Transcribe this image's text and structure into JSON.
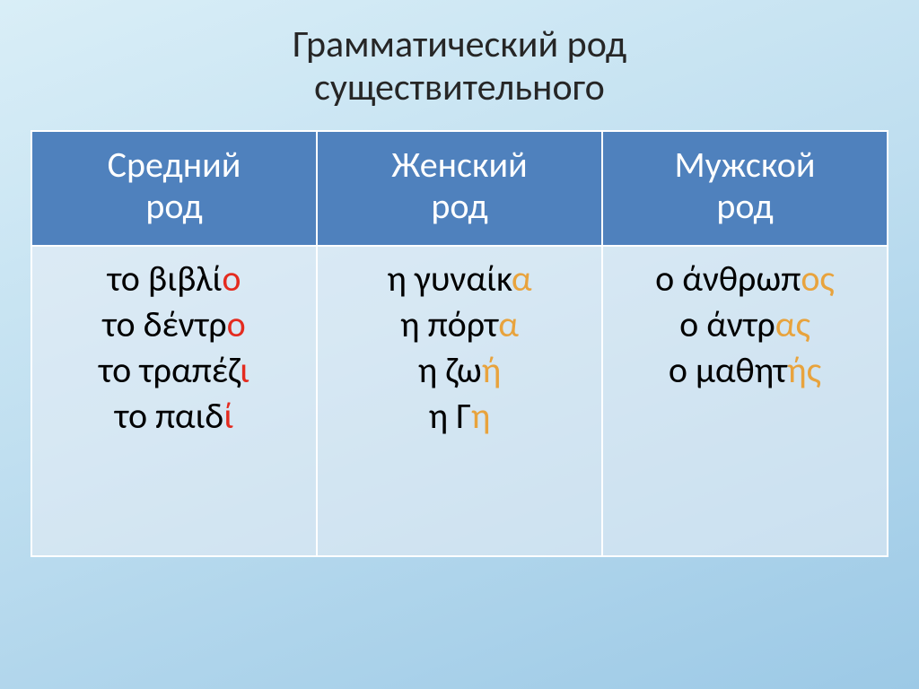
{
  "title_l1": "Грамматический род",
  "title_l2": "существительного",
  "colors": {
    "header_bg": "#4f81bd",
    "header_text": "#ffffff",
    "cell_border": "#ffffff",
    "highlight_red": "#e42b1f",
    "highlight_amber": "#e8a33d",
    "bg_gradient_from": "#d9eef7",
    "bg_gradient_to": "#9cc9e6"
  },
  "table": {
    "headers": {
      "col1_l1": "Средний",
      "col1_l2": "род",
      "col2_l1": "Женский",
      "col2_l2": "род",
      "col3_l1": "Мужской",
      "col3_l2": "род"
    },
    "neuter": [
      {
        "prefix": "το βιβλί",
        "ending": "ο",
        "ending_color": "red"
      },
      {
        "prefix": "το δέντρ",
        "ending": "ο",
        "ending_color": "red"
      },
      {
        "prefix": "το τραπέζ",
        "ending": "ι",
        "ending_color": "red"
      },
      {
        "prefix": "το παιδ",
        "ending": "ί",
        "ending_color": "red"
      }
    ],
    "feminine": [
      {
        "prefix": "η γυναίκ",
        "ending": "α",
        "ending_color": "amber"
      },
      {
        "prefix": "η πόρτ",
        "ending": "α",
        "ending_color": "amber"
      },
      {
        "prefix": "η ζω",
        "ending": "ή",
        "ending_color": "amber"
      },
      {
        "prefix": "η Γ",
        "ending": "η",
        "ending_color": "amber"
      }
    ],
    "masculine": [
      {
        "prefix": "ο άνθρωπ",
        "ending": "ος",
        "ending_color": "amber"
      },
      {
        "prefix": "ο άντρ",
        "ending": "ας",
        "ending_color": "amber"
      },
      {
        "prefix": "ο μαθητ",
        "ending": "ής",
        "ending_color": "amber"
      }
    ]
  },
  "typography": {
    "title_fontsize_pt": 32,
    "header_fontsize_pt": 30,
    "cell_fontsize_pt": 30,
    "font_family": "Calibri"
  },
  "layout": {
    "columns": 3,
    "header_rows": 1,
    "body_rows": 1
  }
}
